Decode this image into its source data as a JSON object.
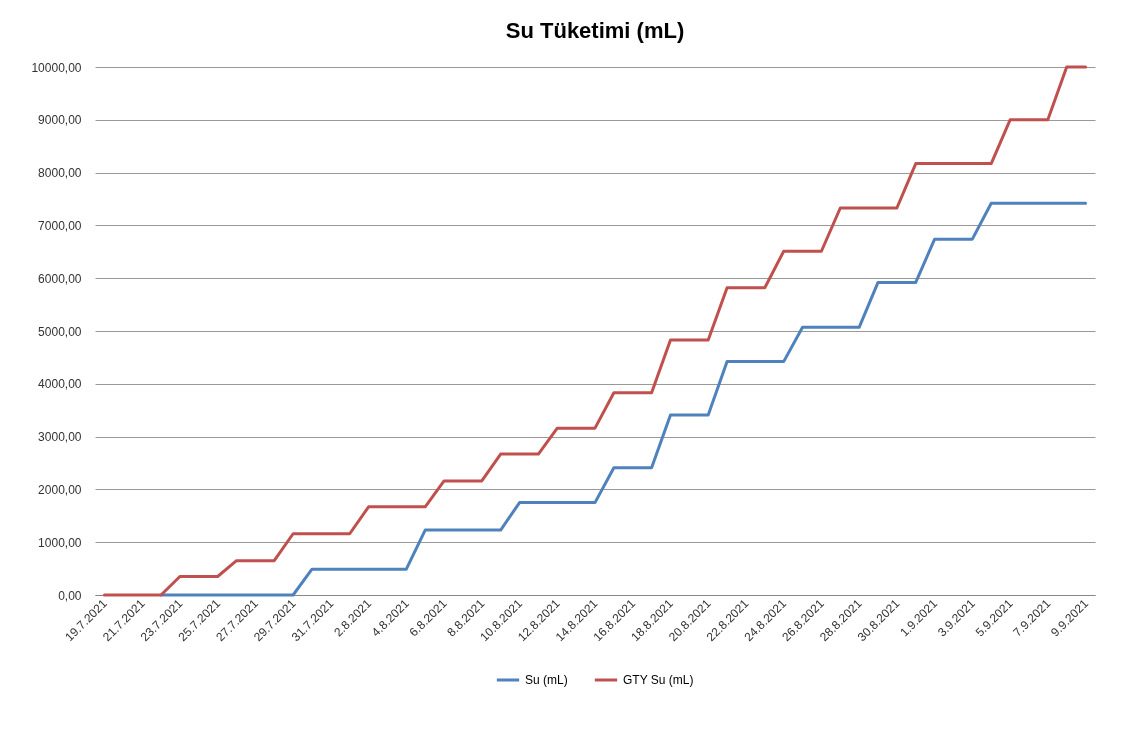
{
  "chart_data": {
    "type": "line",
    "title": "Su Tüketimi (mL)",
    "categories": [
      "19.7.2021",
      null,
      "21.7.2021",
      null,
      "23.7.2021",
      null,
      "25.7.2021",
      null,
      "27.7.2021",
      null,
      "29.7.2021",
      null,
      "31.7.2021",
      null,
      "2.8.2021",
      null,
      "4.8.2021",
      null,
      "6.8.2021",
      null,
      "8.8.2021",
      null,
      "10.8.2021",
      null,
      "12.8.2021",
      null,
      "14.8.2021",
      null,
      "16.8.2021",
      null,
      "18.8.2021",
      null,
      "20.8.2021",
      null,
      "22.8.2021",
      null,
      "24.8.2021",
      null,
      "26.8.2021",
      null,
      "28.8.2021",
      null,
      "30.8.2021",
      null,
      "1.9.2021",
      null,
      "3.9.2021",
      null,
      "5.9.2021",
      null,
      "7.9.2021",
      null,
      "9.9.2021"
    ],
    "series": [
      {
        "name": "Su (mL)",
        "color": "#4f81bd",
        "values": [
          null,
          null,
          null,
          0,
          0,
          0,
          0,
          0,
          0,
          0,
          0,
          490,
          490,
          490,
          490,
          490,
          490,
          1230,
          1230,
          1230,
          1230,
          1230,
          1750,
          1750,
          1750,
          1750,
          1750,
          2410,
          2410,
          2410,
          3410,
          3410,
          3410,
          4420,
          4420,
          4420,
          4420,
          5070,
          5070,
          5070,
          5070,
          5920,
          5920,
          5920,
          6740,
          6740,
          6740,
          7420,
          7420,
          7420,
          7420,
          7420,
          7420
        ]
      },
      {
        "name": "GTY Su (mL)",
        "color": "#c0504d",
        "values": [
          0,
          0,
          0,
          0,
          350,
          350,
          350,
          650,
          650,
          650,
          1160,
          1160,
          1160,
          1160,
          1670,
          1670,
          1670,
          1670,
          2160,
          2160,
          2160,
          2670,
          2670,
          2670,
          3160,
          3160,
          3160,
          3830,
          3830,
          3830,
          4830,
          4830,
          4830,
          5820,
          5820,
          5820,
          6510,
          6510,
          6510,
          7330,
          7330,
          7330,
          7330,
          8170,
          8170,
          8170,
          8170,
          8170,
          9000,
          9000,
          9000,
          10000,
          10000
        ]
      }
    ],
    "ylim": [
      0,
      10000
    ],
    "yticks": [
      {
        "value": 0,
        "label": "0,00"
      },
      {
        "value": 1000,
        "label": "1000,00"
      },
      {
        "value": 2000,
        "label": "2000,00"
      },
      {
        "value": 3000,
        "label": "3000,00"
      },
      {
        "value": 4000,
        "label": "4000,00"
      },
      {
        "value": 5000,
        "label": "5000,00"
      },
      {
        "value": 6000,
        "label": "6000,00"
      },
      {
        "value": 7000,
        "label": "7000,00"
      },
      {
        "value": 8000,
        "label": "8000,00"
      },
      {
        "value": 9000,
        "label": "9000,00"
      },
      {
        "value": 10000,
        "label": "10000,00"
      }
    ],
    "grid": "y",
    "legend": "bottom",
    "marker": "none",
    "line_style": "solid"
  }
}
